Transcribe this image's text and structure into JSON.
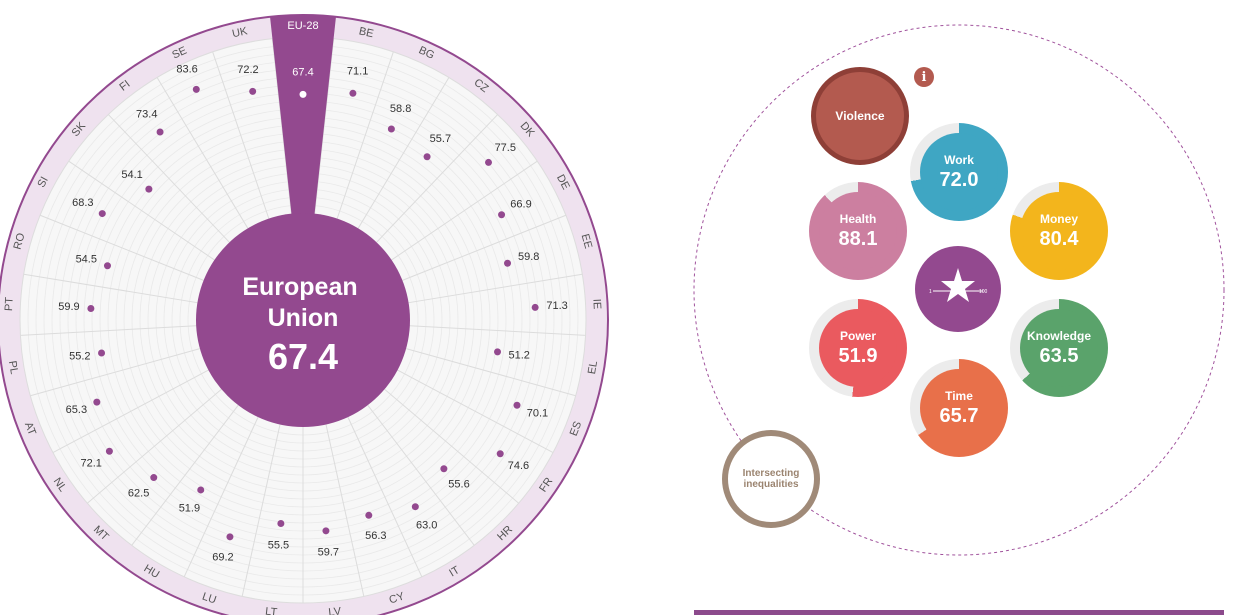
{
  "chart_data": {
    "type": "radial",
    "title": "European Union",
    "center_value": "67.4",
    "scale": [
      0,
      100
    ],
    "highlight": "EU-28",
    "countries": [
      {
        "code": "EU-28",
        "value": 67.4
      },
      {
        "code": "BE",
        "value": 71.1
      },
      {
        "code": "BG",
        "value": 58.8
      },
      {
        "code": "CZ",
        "value": 55.7
      },
      {
        "code": "DK",
        "value": 77.5
      },
      {
        "code": "DE",
        "value": 66.9
      },
      {
        "code": "EE",
        "value": 59.8
      },
      {
        "code": "IE",
        "value": 71.3
      },
      {
        "code": "EL",
        "value": 51.2
      },
      {
        "code": "ES",
        "value": 70.1
      },
      {
        "code": "FR",
        "value": 74.6
      },
      {
        "code": "HR",
        "value": 55.6
      },
      {
        "code": "IT",
        "value": 63.0
      },
      {
        "code": "CY",
        "value": 56.3
      },
      {
        "code": "LV",
        "value": 59.7
      },
      {
        "code": "LT",
        "value": 55.5
      },
      {
        "code": "LU",
        "value": 69.2
      },
      {
        "code": "HU",
        "value": 51.9
      },
      {
        "code": "MT",
        "value": 62.5
      },
      {
        "code": "NL",
        "value": 72.1
      },
      {
        "code": "AT",
        "value": 65.3
      },
      {
        "code": "PL",
        "value": 55.2
      },
      {
        "code": "PT",
        "value": 59.9
      },
      {
        "code": "RO",
        "value": 54.5
      },
      {
        "code": "SI",
        "value": 68.3
      },
      {
        "code": "SK",
        "value": 54.1
      },
      {
        "code": "FI",
        "value": 73.4
      },
      {
        "code": "SE",
        "value": 83.6
      },
      {
        "code": "UK",
        "value": 72.2
      }
    ]
  },
  "center": {
    "line1": "European",
    "line2": "Union",
    "value": "67.4"
  },
  "domains": {
    "violence": {
      "name": "Violence"
    },
    "work": {
      "name": "Work",
      "value": "72.0",
      "score": 72.0
    },
    "money": {
      "name": "Money",
      "value": "80.4",
      "score": 80.4
    },
    "health": {
      "name": "Health",
      "value": "88.1",
      "score": 88.1
    },
    "knowledge": {
      "name": "Knowledge",
      "value": "63.5",
      "score": 63.5
    },
    "power": {
      "name": "Power",
      "value": "51.9",
      "score": 51.9
    },
    "time": {
      "name": "Time",
      "value": "65.7",
      "score": 65.7
    },
    "intersecting": {
      "name1": "Intersecting",
      "name2": "inequalities"
    }
  },
  "logo": {
    "scale_min": "1",
    "scale_max": "100"
  },
  "info_icon": "i",
  "colors": {
    "purple": "#93498f",
    "ring_bg": "#efe2ef",
    "violence": "#b35a4f",
    "work": "#3fa6c3",
    "money": "#f3b51c",
    "health": "#cc7fa0",
    "knowledge": "#5aa36b",
    "power": "#ea5a5f",
    "time": "#e8704a",
    "intersecting": "#a08a78"
  }
}
